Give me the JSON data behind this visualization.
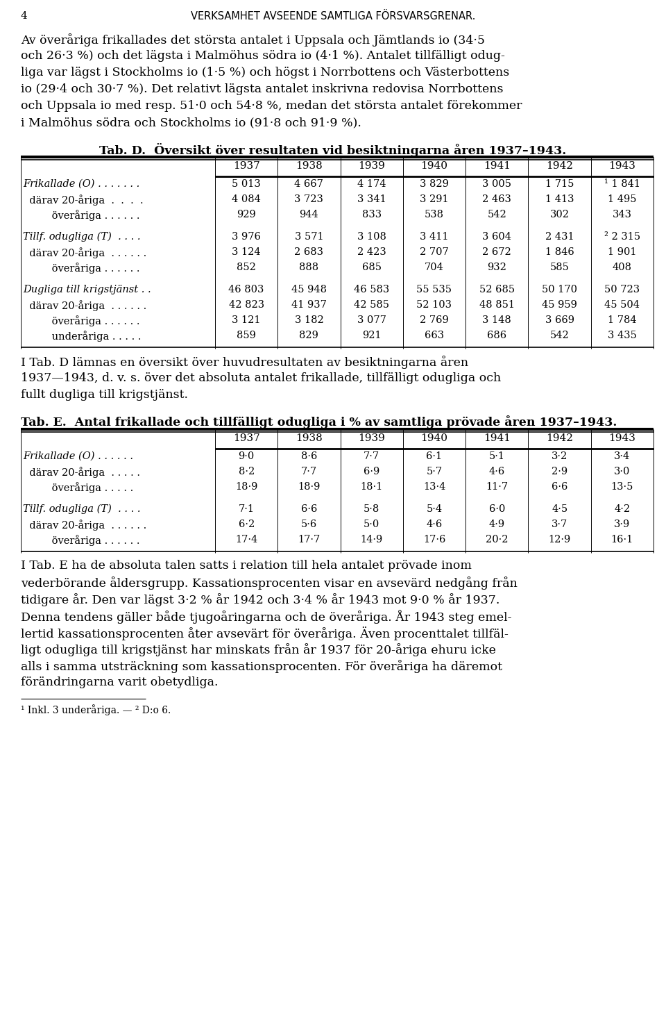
{
  "page_num": "4",
  "header": "VERKSAMHET AVSEENDE SAMTLIGA FÖRSVARSGRENAR.",
  "para1_lines": [
    "Av överåriga frikallades det största antalet i Uppsala och Jämtlands io (34·5",
    "och 26·3 %) och det lägsta i Malmöhus södra io (4·1 %). Antalet tillfälligt odug-",
    "liga var lägst i Stockholms io (1·5 %) och högst i Norrbottens och Västerbottens",
    "io (29·4 och 30·7 %). Det relativt lägsta antalet inskrivna redovisa Norrbottens",
    "och Uppsala io med resp. 51·0 och 54·8 %, medan det största antalet förekommer",
    "i Malmöhus södra och Stockholms io (91·8 och 91·9 %)."
  ],
  "tab_d_title": "Tab. D.  Översikt över resultaten vid besiktningarna åren 1937–1943.",
  "tab_d_years": [
    "1937",
    "1938",
    "1939",
    "1940",
    "1941",
    "1942",
    "1943"
  ],
  "tab_d_rows": [
    {
      "label": "Frikallade (O) . . . . . . .",
      "italic": true,
      "gap_before": false,
      "values": [
        "5 013",
        "4 667",
        "4 174",
        "3 829",
        "3 005",
        "1 715",
        "¹ 1 841"
      ]
    },
    {
      "label": "  därav 20-åriga  .  .  .  .",
      "italic": false,
      "gap_before": false,
      "values": [
        "4 084",
        "3 723",
        "3 341",
        "3 291",
        "2 463",
        "1 413",
        "1 495"
      ]
    },
    {
      "label": "         överåriga . . . . . .",
      "italic": false,
      "gap_before": false,
      "values": [
        "929",
        "944",
        "833",
        "538",
        "542",
        "302",
        "343"
      ]
    },
    {
      "label": "",
      "italic": false,
      "gap_before": true,
      "values": [
        "",
        "",
        "",
        "",
        "",
        "",
        ""
      ]
    },
    {
      "label": "Tillf. odugliga (T)  . . . .",
      "italic": true,
      "gap_before": false,
      "values": [
        "3 976",
        "3 571",
        "3 108",
        "3 411",
        "3 604",
        "2 431",
        "² 2 315"
      ]
    },
    {
      "label": "  därav 20-åriga  . . . . . .",
      "italic": false,
      "gap_before": false,
      "values": [
        "3 124",
        "2 683",
        "2 423",
        "2 707",
        "2 672",
        "1 846",
        "1 901"
      ]
    },
    {
      "label": "         överåriga . . . . . .",
      "italic": false,
      "gap_before": false,
      "values": [
        "852",
        "888",
        "685",
        "704",
        "932",
        "585",
        "408"
      ]
    },
    {
      "label": "",
      "italic": false,
      "gap_before": true,
      "values": [
        "",
        "",
        "",
        "",
        "",
        "",
        ""
      ]
    },
    {
      "label": "Dugliga till krigstjänst . .",
      "italic": true,
      "gap_before": false,
      "values": [
        "46 803",
        "45 948",
        "46 583",
        "55 535",
        "52 685",
        "50 170",
        "50 723"
      ]
    },
    {
      "label": "  därav 20-åriga  . . . . . .",
      "italic": false,
      "gap_before": false,
      "values": [
        "42 823",
        "41 937",
        "42 585",
        "52 103",
        "48 851",
        "45 959",
        "45 504"
      ]
    },
    {
      "label": "         överåriga . . . . . .",
      "italic": false,
      "gap_before": false,
      "values": [
        "3 121",
        "3 182",
        "3 077",
        "2 769",
        "3 148",
        "3 669",
        "1 784"
      ]
    },
    {
      "label": "         underåriga . . . . .",
      "italic": false,
      "gap_before": false,
      "values": [
        "859",
        "829",
        "921",
        "663",
        "686",
        "542",
        "3 435"
      ]
    }
  ],
  "para2_lines": [
    "I Tab. D lämnas en översikt över huvudresultaten av besiktningarna åren",
    "1937—1943, d. v. s. över det absoluta antalet frikallade, tillfälligt odugliga och",
    "fullt dugliga till krigstjänst."
  ],
  "tab_e_title": "Tab. E.  Antal frikallade och tillfälligt odugliga i % av samtliga prövade åren 1937–1943.",
  "tab_e_years": [
    "1937",
    "1938",
    "1939",
    "1940",
    "1941",
    "1942",
    "1943"
  ],
  "tab_e_rows": [
    {
      "label": "Frikallade (O) . . . . . .",
      "italic": true,
      "gap_before": false,
      "values": [
        "9·0",
        "8·6",
        "7·7",
        "6·1",
        "5·1",
        "3·2",
        "3·4"
      ]
    },
    {
      "label": "  därav 20-åriga  . . . . .",
      "italic": false,
      "gap_before": false,
      "values": [
        "8·2",
        "7·7",
        "6·9",
        "5·7",
        "4·6",
        "2·9",
        "3·0"
      ]
    },
    {
      "label": "         överåriga . . . . .",
      "italic": false,
      "gap_before": false,
      "values": [
        "18·9",
        "18·9",
        "18·1",
        "13·4",
        "11·7",
        "6·6",
        "13·5"
      ]
    },
    {
      "label": "",
      "italic": false,
      "gap_before": true,
      "values": [
        "",
        "",
        "",
        "",
        "",
        "",
        ""
      ]
    },
    {
      "label": "Tillf. odugliga (T)  . . . .",
      "italic": true,
      "gap_before": false,
      "values": [
        "7·1",
        "6·6",
        "5·8",
        "5·4",
        "6·0",
        "4·5",
        "4·2"
      ]
    },
    {
      "label": "  därav 20-åriga  . . . . . .",
      "italic": false,
      "gap_before": false,
      "values": [
        "6·2",
        "5·6",
        "5·0",
        "4·6",
        "4·9",
        "3·7",
        "3·9"
      ]
    },
    {
      "label": "         överåriga . . . . . .",
      "italic": false,
      "gap_before": false,
      "values": [
        "17·4",
        "17·7",
        "14·9",
        "17·6",
        "20·2",
        "12·9",
        "16·1"
      ]
    }
  ],
  "para3_lines": [
    "I Tab. E ha de absoluta talen satts i relation till hela antalet prövade inom",
    "vederbörande åldersgrupp. Kassationsprocenten visar en avsevärd nedgång från",
    "tidigare år. Den var lägst 3·2 % år 1942 och 3·4 % år 1943 mot 9·0 % år 1937.",
    "Denna tendens gäller både tjugoåringarna och de överåriga. År 1943 steg emel-",
    "lertid kassationsprocenten åter avsevärt för överåriga. Även procenttalet tillfäl-",
    "ligt odugliga till krigstjänst har minskats från år 1937 för 20-åriga ehuru icke",
    "alls i samma utsträckning som kassationsprocenten. För överåriga ha däremot",
    "förändringarna varit obetydliga."
  ],
  "footnote": "¹ Inkl. 3 underåriga. — ² D:o 6."
}
